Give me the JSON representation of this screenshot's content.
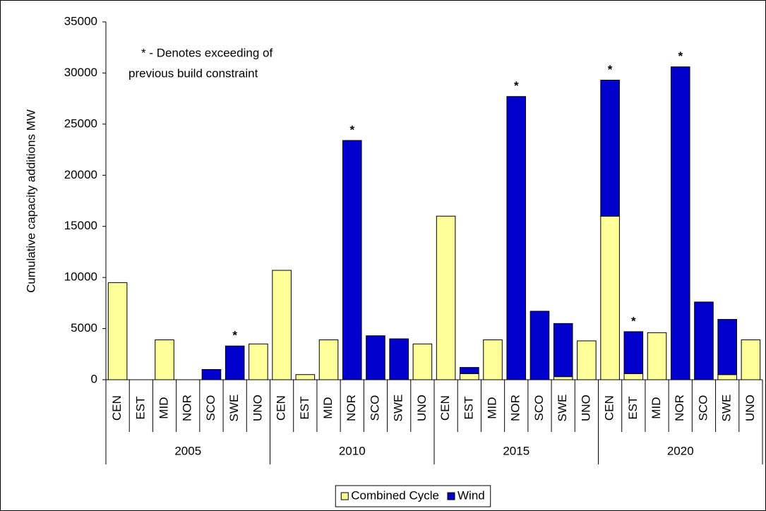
{
  "chart_data": {
    "type": "stacked-bar",
    "ylabel": "Cumulative capacity additions MW",
    "ylim": [
      0,
      35000
    ],
    "yticks": [
      0,
      5000,
      10000,
      15000,
      20000,
      25000,
      30000,
      35000
    ],
    "categories": [
      "CEN",
      "EST",
      "MID",
      "NOR",
      "SCO",
      "SWE",
      "UNO",
      "CEN",
      "EST",
      "MID",
      "NOR",
      "SCO",
      "SWE",
      "UNO",
      "CEN",
      "EST",
      "MID",
      "NOR",
      "SCO",
      "SWE",
      "UNO",
      "CEN",
      "EST",
      "MID",
      "NOR",
      "SCO",
      "SWE",
      "UNO"
    ],
    "groups": [
      "2005",
      "2010",
      "2015",
      "2020"
    ],
    "series": [
      {
        "name": "Combined Cycle",
        "color": "#ffff99",
        "values": [
          9500,
          0,
          3900,
          0,
          0,
          0,
          3500,
          10700,
          500,
          3900,
          0,
          0,
          0,
          3500,
          16000,
          600,
          3900,
          0,
          0,
          300,
          3800,
          16000,
          600,
          4600,
          0,
          0,
          500,
          3900
        ]
      },
      {
        "name": "Wind",
        "color": "#0000cc",
        "values": [
          0,
          0,
          0,
          0,
          1000,
          3300,
          0,
          0,
          0,
          0,
          23400,
          4300,
          4000,
          0,
          0,
          600,
          0,
          27700,
          6700,
          5200,
          0,
          13300,
          4100,
          0,
          30600,
          7600,
          5400,
          0
        ]
      }
    ],
    "note": [
      "*  - Denotes exceeding of",
      "previous build constraint"
    ],
    "annotations": [
      {
        "text": "*",
        "category": 5
      },
      {
        "text": "*",
        "category": 10
      },
      {
        "text": "*",
        "category": 17
      },
      {
        "text": "*",
        "category": 21
      },
      {
        "text": "*",
        "category": 22
      },
      {
        "text": "*",
        "category": 24
      }
    ]
  }
}
